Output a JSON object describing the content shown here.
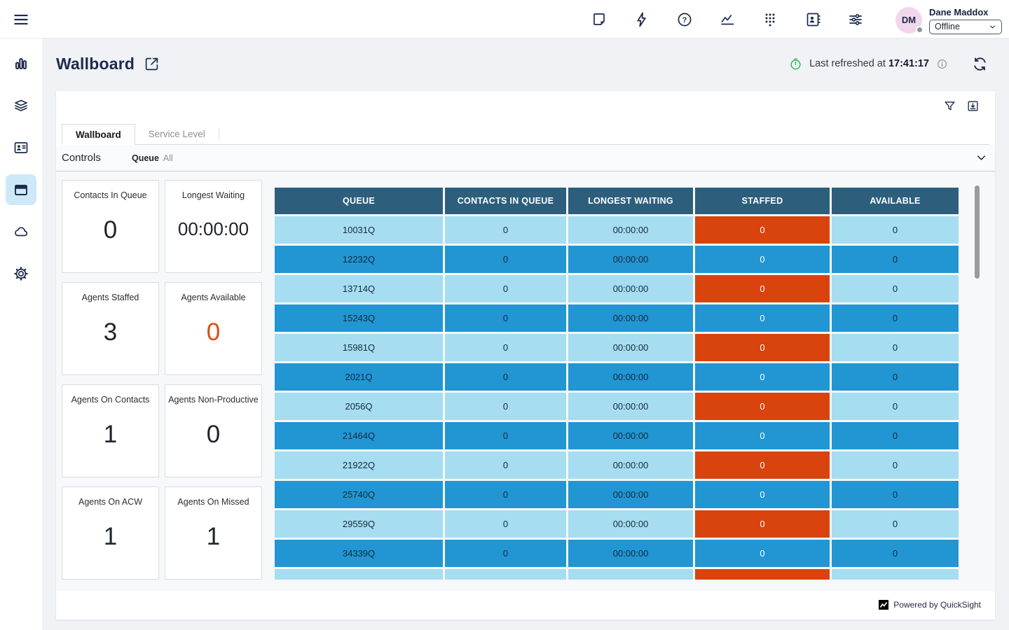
{
  "topbar": {
    "user": {
      "initials": "DM",
      "name": "Dane Maddox",
      "status": "Offline"
    }
  },
  "header": {
    "title": "Wallboard",
    "refresh_label": "Last refreshed at",
    "refresh_time": "17:41:17"
  },
  "tabs": [
    {
      "label": "Wallboard",
      "active": true
    },
    {
      "label": "Service Level",
      "active": false
    }
  ],
  "controls": {
    "title": "Controls",
    "filter_label": "Queue",
    "filter_value": "All"
  },
  "kpis": [
    {
      "label": "Contacts In Queue",
      "value": "0",
      "accent": false
    },
    {
      "label": "Longest Waiting",
      "value": "00:00:00",
      "accent": false
    },
    {
      "label": "Agents Staffed",
      "value": "3",
      "accent": false
    },
    {
      "label": "Agents Available",
      "value": "0",
      "accent": true
    },
    {
      "label": "Agents On Contacts",
      "value": "1",
      "accent": false
    },
    {
      "label": "Agents Non-Productive",
      "value": "0",
      "accent": false
    },
    {
      "label": "Agents On ACW",
      "value": "1",
      "accent": false
    },
    {
      "label": "Agents On Missed",
      "value": "1",
      "accent": false
    }
  ],
  "table": {
    "columns": [
      "QUEUE",
      "CONTACTS IN QUEUE",
      "LONGEST WAITING",
      "STAFFED",
      "AVAILABLE"
    ],
    "rows": [
      {
        "queue": "10031Q",
        "contacts_in_queue": "0",
        "longest_waiting": "00:00:00",
        "staffed": "0",
        "available": "0"
      },
      {
        "queue": "12232Q",
        "contacts_in_queue": "0",
        "longest_waiting": "00:00:00",
        "staffed": "0",
        "available": "0"
      },
      {
        "queue": "13714Q",
        "contacts_in_queue": "0",
        "longest_waiting": "00:00:00",
        "staffed": "0",
        "available": "0"
      },
      {
        "queue": "15243Q",
        "contacts_in_queue": "0",
        "longest_waiting": "00:00:00",
        "staffed": "0",
        "available": "0"
      },
      {
        "queue": "15981Q",
        "contacts_in_queue": "0",
        "longest_waiting": "00:00:00",
        "staffed": "0",
        "available": "0"
      },
      {
        "queue": "2021Q",
        "contacts_in_queue": "0",
        "longest_waiting": "00:00:00",
        "staffed": "0",
        "available": "0"
      },
      {
        "queue": "2056Q",
        "contacts_in_queue": "0",
        "longest_waiting": "00:00:00",
        "staffed": "0",
        "available": "0"
      },
      {
        "queue": "21464Q",
        "contacts_in_queue": "0",
        "longest_waiting": "00:00:00",
        "staffed": "0",
        "available": "0"
      },
      {
        "queue": "21922Q",
        "contacts_in_queue": "0",
        "longest_waiting": "00:00:00",
        "staffed": "0",
        "available": "0"
      },
      {
        "queue": "25740Q",
        "contacts_in_queue": "0",
        "longest_waiting": "00:00:00",
        "staffed": "0",
        "available": "0"
      },
      {
        "queue": "29559Q",
        "contacts_in_queue": "0",
        "longest_waiting": "00:00:00",
        "staffed": "0",
        "available": "0"
      },
      {
        "queue": "34339Q",
        "contacts_in_queue": "0",
        "longest_waiting": "00:00:00",
        "staffed": "0",
        "available": "0"
      },
      {
        "queue": "",
        "contacts_in_queue": "",
        "longest_waiting": "",
        "staffed": "",
        "available": ""
      }
    ]
  },
  "footer": {
    "powered_by": "Powered by QuickSight"
  },
  "colors": {
    "table_header_bg": "#2D5F7D",
    "row_light": "#A6DDF0",
    "row_medium": "#2196D3",
    "staffed_bg": "#D9430E",
    "kpi_accent": "#DD4B12",
    "refresh_green": "#2EBD59",
    "icon_navy": "#1B2B4B",
    "sidebar_active_bg": "#CDE9F8",
    "avatar_bg": "#F2D7EC"
  }
}
